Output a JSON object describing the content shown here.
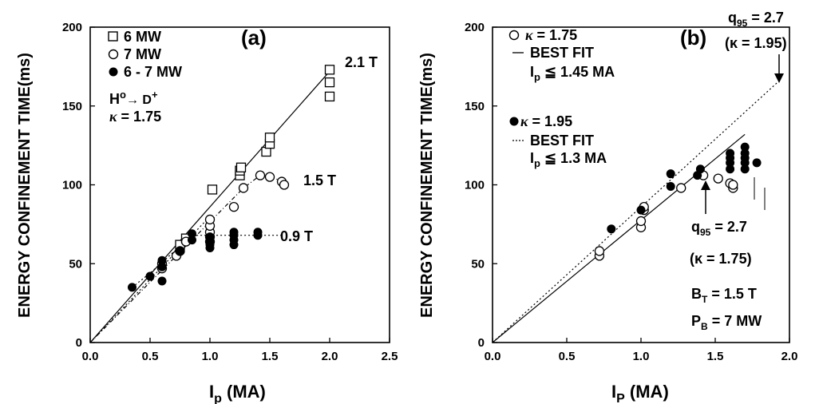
{
  "chart_data": [
    {
      "type": "scatter",
      "panel_label": "(a)",
      "xlabel": "I",
      "xlabel_sub": "p",
      "xlabel_unit": " (MA)",
      "ylabel": "ENERGY CONFINEMENT TIME(ms)",
      "xlim": [
        0.0,
        2.5
      ],
      "ylim": [
        0,
        200
      ],
      "xticks": [
        "0.0",
        "0.5",
        "1.0",
        "1.5",
        "2.0",
        "2.5"
      ],
      "yticks": [
        "0",
        "50",
        "100",
        "150",
        "200"
      ],
      "legend": [
        "6 MW",
        "7 MW",
        "6 - 7 MW"
      ],
      "annotation_lines": [
        "H",
        "o",
        "→ D",
        "+",
        "κ",
        " = 1.75"
      ],
      "series": [
        {
          "name": "6 MW",
          "marker": "square",
          "points": [
            [
              0.75,
              62
            ],
            [
              0.8,
              66
            ],
            [
              1.02,
              97
            ],
            [
              1.25,
              106
            ],
            [
              1.25,
              109
            ],
            [
              1.26,
              111
            ],
            [
              1.47,
              121
            ],
            [
              1.5,
              126
            ],
            [
              1.5,
              130
            ],
            [
              2.0,
              156
            ],
            [
              2.0,
              165
            ],
            [
              2.0,
              173
            ]
          ]
        },
        {
          "name": "7 MW",
          "marker": "open-circle",
          "points": [
            [
              0.6,
              47
            ],
            [
              0.6,
              50
            ],
            [
              0.72,
              55
            ],
            [
              0.75,
              58
            ],
            [
              0.8,
              64
            ],
            [
              1.0,
              64
            ],
            [
              1.0,
              67
            ],
            [
              1.0,
              70
            ],
            [
              1.0,
              74
            ],
            [
              1.0,
              78
            ],
            [
              1.2,
              86
            ],
            [
              1.28,
              98
            ],
            [
              1.42,
              106
            ],
            [
              1.5,
              105
            ],
            [
              1.6,
              102
            ],
            [
              1.62,
              100
            ]
          ]
        },
        {
          "name": "6 - 7 MW",
          "marker": "filled-circle",
          "points": [
            [
              0.35,
              35
            ],
            [
              0.5,
              42
            ],
            [
              0.6,
              39
            ],
            [
              0.6,
              52
            ],
            [
              0.6,
              48
            ],
            [
              0.75,
              58
            ],
            [
              0.85,
              65
            ],
            [
              0.85,
              69
            ],
            [
              1.0,
              60
            ],
            [
              1.0,
              62
            ],
            [
              1.0,
              64
            ],
            [
              1.0,
              67
            ],
            [
              1.2,
              62
            ],
            [
              1.2,
              65
            ],
            [
              1.2,
              68
            ],
            [
              1.2,
              70
            ],
            [
              1.4,
              68
            ],
            [
              1.4,
              70
            ]
          ]
        }
      ],
      "fit_lines": [
        {
          "label": "2.1 T",
          "style": "solid",
          "points": [
            [
              0,
              0
            ],
            [
              2.0,
              172
            ]
          ]
        },
        {
          "label": "1.5 T",
          "style": "dashdot",
          "points": [
            [
              0,
              0
            ],
            [
              1.28,
              98
            ],
            [
              1.42,
              106
            ],
            [
              1.55,
              104
            ],
            [
              1.63,
              100
            ]
          ]
        },
        {
          "label": "0.9 T",
          "style": "dotted",
          "points": [
            [
              0.35,
              35
            ],
            [
              0.5,
              44
            ],
            [
              0.85,
              68
            ],
            [
              1.0,
              68
            ],
            [
              1.6,
              68
            ]
          ]
        },
        {
          "label": "",
          "style": "dotted",
          "points": [
            [
              0,
              0
            ],
            [
              1.0,
              80
            ]
          ]
        }
      ]
    },
    {
      "type": "scatter",
      "panel_label": "(b)",
      "xlabel": "I",
      "xlabel_sub": "P",
      "xlabel_unit": " (MA)",
      "ylabel": "ENERGY CONFINEMENT TIME(ms)",
      "xlim": [
        0.0,
        2.0
      ],
      "ylim": [
        0,
        200
      ],
      "xticks": [
        "0.0",
        "0.5",
        "1.0",
        "1.5",
        "2.0"
      ],
      "yticks": [
        "0",
        "50",
        "100",
        "150",
        "200"
      ],
      "legend": [
        {
          "kappa": " = 1.75",
          "fit": "BEST FIT",
          "limit_i": "I",
          "limit_sub": "p",
          "limit": " ≦ 1.45 MA"
        },
        {
          "kappa": " = 1.95",
          "fit": "BEST FIT",
          "limit_i": "I",
          "limit_sub": "p",
          "limit": " ≦ 1.3 MA"
        }
      ],
      "annotations": {
        "q_top": "q",
        "q_top_sub": "95",
        "q_top_val": " = 2.7",
        "q_top_kappa": "(κ = 1.95)",
        "q_mid": "q",
        "q_mid_sub": "95",
        "q_mid_val": " = 2.7",
        "q_mid_kappa": "(κ = 1.75)",
        "bt": "B",
        "bt_sub": "T",
        "bt_val": " = 1.5 T",
        "pb": "P",
        "pb_sub": "B",
        "pb_val": " = 7 MW"
      },
      "series": [
        {
          "name": "κ = 1.75",
          "marker": "open-circle",
          "points": [
            [
              0.72,
              55
            ],
            [
              0.72,
              58
            ],
            [
              1.0,
              73
            ],
            [
              1.0,
              77
            ],
            [
              1.02,
              84
            ],
            [
              1.02,
              86
            ],
            [
              1.27,
              98
            ],
            [
              1.42,
              106
            ],
            [
              1.52,
              104
            ],
            [
              1.6,
              101
            ],
            [
              1.62,
              98
            ],
            [
              1.62,
              100
            ]
          ]
        },
        {
          "name": "κ = 1.95",
          "marker": "filled-circle",
          "points": [
            [
              0.8,
              72
            ],
            [
              1.0,
              84
            ],
            [
              1.2,
              99
            ],
            [
              1.2,
              107
            ],
            [
              1.38,
              106
            ],
            [
              1.4,
              110
            ],
            [
              1.6,
              110
            ],
            [
              1.6,
              114
            ],
            [
              1.6,
              117
            ],
            [
              1.6,
              120
            ],
            [
              1.7,
              110
            ],
            [
              1.7,
              114
            ],
            [
              1.7,
              117
            ],
            [
              1.7,
              120
            ],
            [
              1.7,
              124
            ],
            [
              1.78,
              114
            ]
          ]
        }
      ],
      "fit_lines": [
        {
          "label": "κ = 1.75 fit",
          "style": "solid",
          "points": [
            [
              0,
              0
            ],
            [
              1.7,
              132
            ]
          ]
        },
        {
          "label": "κ = 1.95 fit",
          "style": "dotted",
          "points": [
            [
              0,
              0
            ],
            [
              1.92,
              165
            ]
          ]
        }
      ]
    }
  ]
}
